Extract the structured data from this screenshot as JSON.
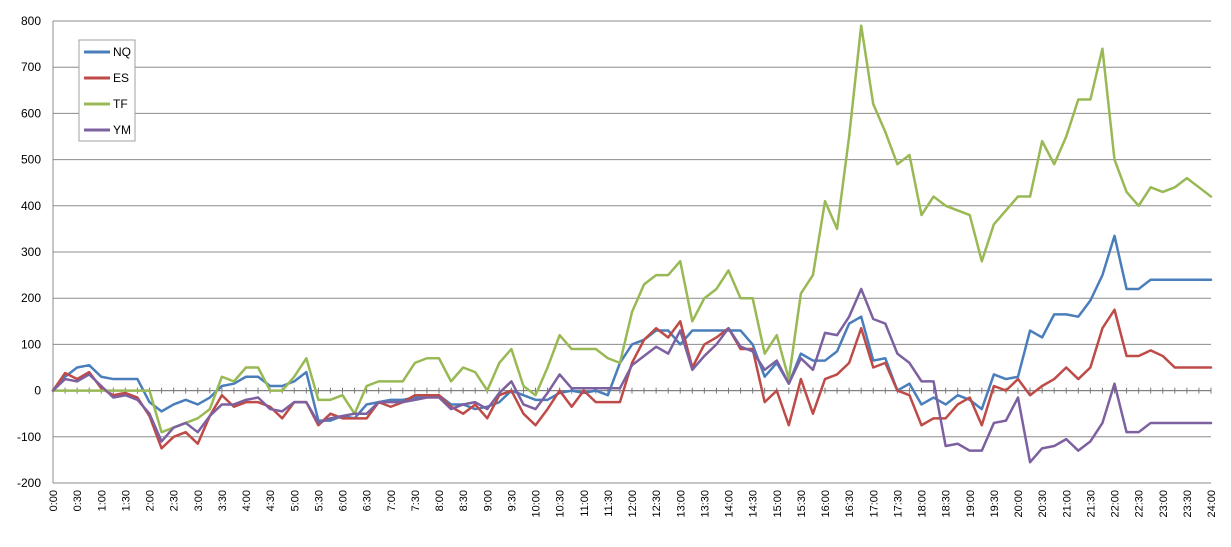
{
  "chart_data": {
    "type": "line",
    "title": "",
    "xlabel": "",
    "ylabel": "",
    "ylim": [
      -200,
      800
    ],
    "yticks": [
      -200,
      -100,
      0,
      100,
      200,
      300,
      400,
      500,
      600,
      700,
      800
    ],
    "grid": "horizontal",
    "legend_position": "top-left",
    "x": [
      "0:00",
      "0:15",
      "0:30",
      "0:45",
      "1:00",
      "1:15",
      "1:30",
      "1:45",
      "2:00",
      "2:15",
      "2:30",
      "2:45",
      "3:00",
      "3:15",
      "3:30",
      "3:45",
      "4:00",
      "4:15",
      "4:30",
      "4:45",
      "5:00",
      "5:15",
      "5:30",
      "5:45",
      "6:00",
      "6:15",
      "6:30",
      "6:45",
      "7:00",
      "7:15",
      "7:30",
      "7:45",
      "8:00",
      "8:15",
      "8:30",
      "8:45",
      "9:00",
      "9:15",
      "9:30",
      "9:45",
      "10:00",
      "10:15",
      "10:30",
      "10:45",
      "11:00",
      "11:15",
      "11:30",
      "11:45",
      "12:00",
      "12:15",
      "12:30",
      "12:45",
      "13:00",
      "13:15",
      "13:30",
      "13:45",
      "14:00",
      "14:15",
      "14:30",
      "14:45",
      "15:00",
      "15:15",
      "15:30",
      "15:45",
      "16:00",
      "16:15",
      "16:30",
      "16:45",
      "17:00",
      "17:15",
      "17:30",
      "17:45",
      "18:00",
      "18:15",
      "18:30",
      "18:45",
      "19:00",
      "19:15",
      "19:30",
      "19:45",
      "20:00",
      "20:15",
      "20:30",
      "20:45",
      "21:00",
      "21:15",
      "21:30",
      "21:45",
      "22:00",
      "22:15",
      "22:30",
      "22:45",
      "23:00",
      "23:15",
      "23:30",
      "23:45",
      "24:00"
    ],
    "x_label_step": 2,
    "series": [
      {
        "name": "NQ",
        "color": "#4a7ebb",
        "values": [
          0,
          30,
          50,
          55,
          30,
          25,
          25,
          25,
          -25,
          -45,
          -30,
          -20,
          -30,
          -15,
          10,
          15,
          30,
          30,
          10,
          10,
          20,
          40,
          -65,
          -65,
          -55,
          -60,
          -30,
          -25,
          -20,
          -20,
          -15,
          -10,
          -10,
          -30,
          -30,
          -40,
          -35,
          -25,
          0,
          -10,
          -20,
          -20,
          -5,
          0,
          -5,
          0,
          -10,
          60,
          100,
          110,
          130,
          130,
          100,
          130,
          130,
          130,
          130,
          130,
          100,
          30,
          60,
          15,
          80,
          65,
          65,
          85,
          145,
          160,
          65,
          70,
          0,
          15,
          -30,
          -15,
          -30,
          -10,
          -20,
          -40,
          35,
          25,
          30,
          130,
          115,
          165,
          165,
          160,
          195,
          250,
          335,
          220,
          220,
          240,
          240,
          240,
          240,
          240,
          240
        ]
      },
      {
        "name": "ES",
        "color": "#be4b48",
        "values": [
          0,
          38,
          25,
          40,
          5,
          -10,
          -5,
          -15,
          -55,
          -125,
          -100,
          -90,
          -115,
          -55,
          -10,
          -35,
          -25,
          -25,
          -35,
          -60,
          -25,
          -25,
          -75,
          -50,
          -60,
          -60,
          -60,
          -25,
          -35,
          -25,
          -10,
          -10,
          -10,
          -35,
          -50,
          -30,
          -60,
          -10,
          0,
          -50,
          -75,
          -40,
          0,
          -35,
          0,
          -25,
          -25,
          -25,
          60,
          110,
          135,
          115,
          150,
          50,
          100,
          115,
          135,
          90,
          90,
          -25,
          0,
          -75,
          25,
          -50,
          25,
          35,
          60,
          135,
          50,
          60,
          0,
          -10,
          -75,
          -60,
          -60,
          -30,
          -15,
          -75,
          10,
          0,
          25,
          -10,
          10,
          25,
          50,
          25,
          50,
          135,
          175,
          75,
          75,
          87,
          75,
          50,
          50,
          50,
          50
        ]
      },
      {
        "name": "TF",
        "color": "#98b954",
        "values": [
          0,
          0,
          0,
          0,
          0,
          0,
          0,
          0,
          0,
          -90,
          -80,
          -70,
          -60,
          -40,
          30,
          20,
          50,
          50,
          0,
          0,
          30,
          70,
          -20,
          -20,
          -10,
          -50,
          10,
          20,
          20,
          20,
          60,
          70,
          70,
          20,
          50,
          40,
          0,
          60,
          90,
          10,
          -10,
          50,
          120,
          90,
          90,
          90,
          70,
          60,
          170,
          230,
          250,
          250,
          280,
          150,
          200,
          220,
          260,
          200,
          200,
          80,
          120,
          25,
          210,
          250,
          410,
          350,
          550,
          790,
          620,
          560,
          490,
          510,
          380,
          420,
          400,
          390,
          380,
          280,
          360,
          390,
          420,
          420,
          540,
          490,
          550,
          630,
          630,
          740,
          500,
          430,
          400,
          440,
          430,
          440,
          460,
          440,
          420
        ]
      },
      {
        "name": "YM",
        "color": "#7d60a0",
        "values": [
          0,
          25,
          20,
          35,
          10,
          -15,
          -10,
          -20,
          -50,
          -110,
          -80,
          -70,
          -90,
          -55,
          -30,
          -30,
          -20,
          -15,
          -40,
          -45,
          -25,
          -25,
          -70,
          -60,
          -55,
          -50,
          -50,
          -25,
          -25,
          -25,
          -20,
          -15,
          -15,
          -40,
          -30,
          -25,
          -40,
          -5,
          20,
          -30,
          -40,
          -5,
          35,
          5,
          5,
          5,
          5,
          5,
          55,
          75,
          95,
          80,
          130,
          45,
          75,
          100,
          135,
          95,
          85,
          45,
          65,
          15,
          70,
          45,
          125,
          120,
          160,
          220,
          155,
          145,
          80,
          60,
          20,
          20,
          -120,
          -115,
          -130,
          -130,
          -70,
          -65,
          -15,
          -155,
          -125,
          -120,
          -105,
          -130,
          -110,
          -70,
          15,
          -90,
          -90,
          -70,
          -70,
          -70,
          -70,
          -70,
          -70
        ]
      }
    ]
  }
}
